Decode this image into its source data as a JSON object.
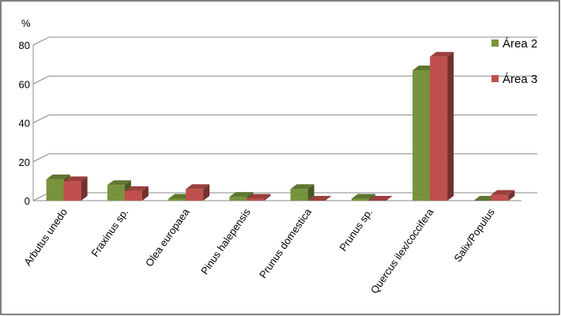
{
  "chart_data": {
    "type": "bar3d",
    "y_label": "%",
    "categories": [
      "Arbutus unedo",
      "Fraxinus sp.",
      "Olea europaea",
      "Pinus halepensis",
      "Prunus domestica",
      "Prunus sp.",
      "Quercus ilex/coccifera",
      "Salix/Populus"
    ],
    "series": [
      {
        "name": "Área 2",
        "color": "#77933c",
        "values": [
          11,
          8,
          1,
          2,
          6,
          1,
          67,
          0
        ]
      },
      {
        "name": "Área 3",
        "color": "#c0504d",
        "values": [
          10,
          5,
          6,
          1,
          0,
          0,
          74,
          3
        ]
      }
    ],
    "ylim": [
      0,
      80
    ],
    "yticks": [
      0,
      20,
      40,
      60,
      80
    ],
    "grid": true,
    "legend": "right"
  }
}
